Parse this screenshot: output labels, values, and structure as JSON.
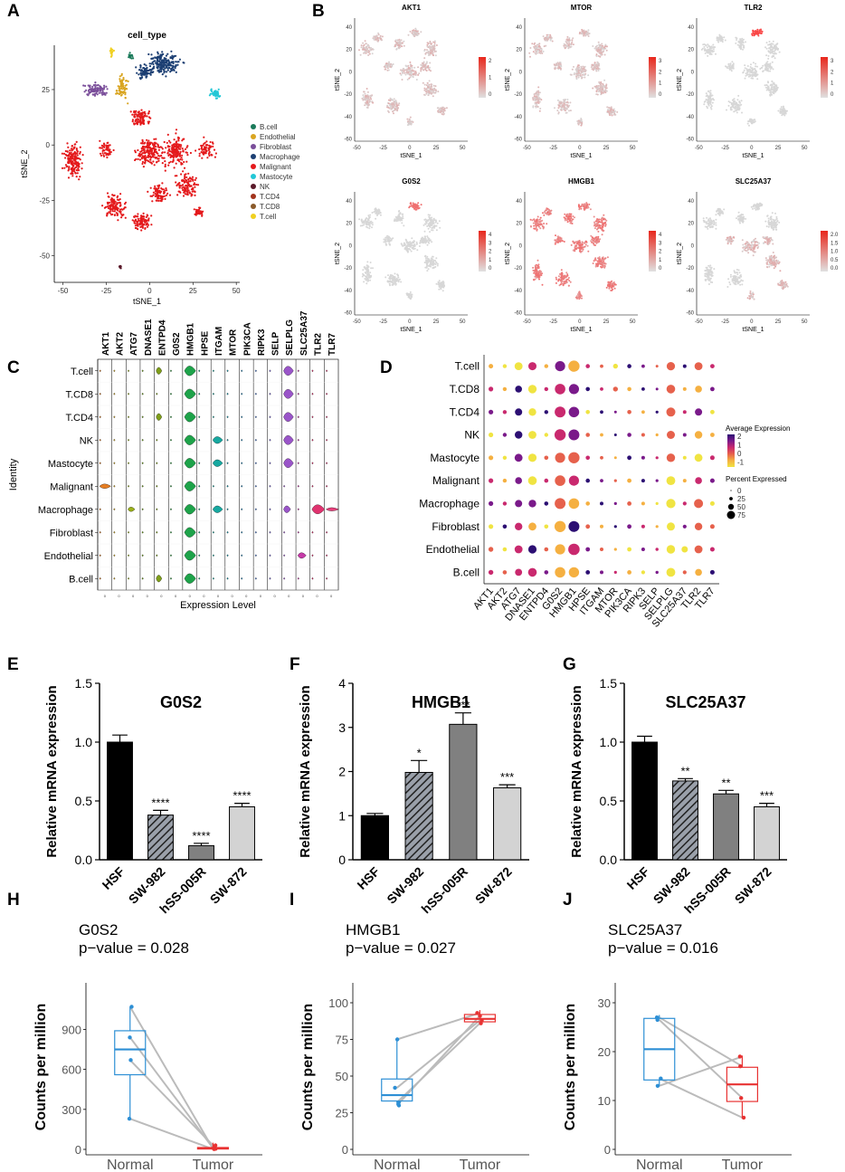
{
  "panel_labels": [
    "A",
    "B",
    "C",
    "D",
    "E",
    "F",
    "G",
    "H",
    "I",
    "J"
  ],
  "tsne": {
    "title": "cell_type",
    "xlabel": "tSNE_1",
    "ylabel": "tSNE_2",
    "xticks": [
      "-50",
      "-25",
      "0",
      "25",
      "50"
    ],
    "yticks": [
      "25",
      "0",
      "-25",
      "-50"
    ],
    "legend": [
      {
        "name": "B.cell",
        "color": "#1b7a5a"
      },
      {
        "name": "Endothelial",
        "color": "#d9a521"
      },
      {
        "name": "Fibroblast",
        "color": "#7a4e9a"
      },
      {
        "name": "Macrophage",
        "color": "#1c3f73"
      },
      {
        "name": "Malignant",
        "color": "#e41a1c"
      },
      {
        "name": "Mastocyte",
        "color": "#22c7d6"
      },
      {
        "name": "NK",
        "color": "#5a1a2a"
      },
      {
        "name": "T.CD4",
        "color": "#a2331c"
      },
      {
        "name": "T.CD8",
        "color": "#8a5a2a"
      },
      {
        "name": "T.cell",
        "color": "#f0d020"
      }
    ]
  },
  "feature_plots": {
    "xlabel": "tSNE_1",
    "ylabel": "tSNE_2",
    "xticks": [
      "-50",
      "-25",
      "0",
      "25",
      "50"
    ],
    "yticks": [
      "40",
      "20",
      "0",
      "-20",
      "-40",
      "-60"
    ],
    "genes": [
      {
        "name": "AKT1",
        "legend": [
          "2",
          "1",
          "0"
        ],
        "max": 2.5
      },
      {
        "name": "MTOR",
        "legend": [
          "3",
          "2",
          "1",
          "0"
        ],
        "max": 3
      },
      {
        "name": "TLR2",
        "legend": [
          "3",
          "2",
          "1",
          "0"
        ],
        "max": 3
      },
      {
        "name": "G0S2",
        "legend": [
          "4",
          "3",
          "2",
          "1",
          "0"
        ],
        "max": 4
      },
      {
        "name": "HMGB1",
        "legend": [
          "4",
          "3",
          "2",
          "1",
          "0"
        ],
        "max": 4
      },
      {
        "name": "SLC25A37",
        "legend": [
          "2.0",
          "1.5",
          "1.0",
          "0.5",
          "0.0"
        ],
        "max": 2
      }
    ]
  },
  "violin": {
    "ylabel": "Identity",
    "xlabel": "Expression Level",
    "genes": [
      "AKT1",
      "AKT2",
      "ATG7",
      "DNASE1",
      "ENTPD4",
      "G0S2",
      "HMGB1",
      "HPSE",
      "ITGAM",
      "MTOR",
      "PIK3CA",
      "RIPK3",
      "SELP",
      "SELPLG",
      "SLC25A37",
      "TLR2",
      "TLR7"
    ],
    "cells": [
      "T.cell",
      "T.CD8",
      "T.CD4",
      "NK",
      "Mastocyte",
      "Malignant",
      "Macrophage",
      "Fibroblast",
      "Endothelial",
      "B.cell"
    ]
  },
  "dotplot": {
    "genes": [
      "AKT1",
      "AKT2",
      "ATG7",
      "DNASE1",
      "ENTPD4",
      "G0S2",
      "HMGB1",
      "HPSE",
      "ITGAM",
      "MTOR",
      "PIK3CA",
      "RIPK3",
      "SELP",
      "SELPLG",
      "SLC25A37",
      "TLR2",
      "TLR7"
    ],
    "cells": [
      "T.cell",
      "T.CD8",
      "T.CD4",
      "NK",
      "Mastocyte",
      "Malignant",
      "Macrophage",
      "Fibroblast",
      "Endothelial",
      "B.cell"
    ],
    "legend_avg_title": "Average Expression",
    "legend_avg_ticks": [
      "2",
      "1",
      "0",
      "-1"
    ],
    "legend_pct_title": "Percent Expressed",
    "legend_pct_ticks": [
      "0",
      "25",
      "50",
      "75"
    ]
  },
  "chart_data": [
    {
      "type": "bar",
      "title": "G0S2",
      "ylabel": "Relative mRNA expression",
      "ylim": [
        0,
        1.5
      ],
      "yticks": [
        "0.0",
        "0.5",
        "1.0",
        "1.5"
      ],
      "categories": [
        "HSF",
        "SW-982",
        "hSS-005R",
        "SW-872"
      ],
      "values": [
        1.0,
        0.38,
        0.12,
        0.45
      ],
      "errors": [
        0.06,
        0.04,
        0.02,
        0.03
      ],
      "significance": [
        "",
        "****",
        "****",
        "****"
      ]
    },
    {
      "type": "bar",
      "title": "HMGB1",
      "ylabel": "Relative mRNA expression",
      "ylim": [
        0,
        4
      ],
      "yticks": [
        "0",
        "1",
        "2",
        "3",
        "4"
      ],
      "categories": [
        "HSF",
        "SW-982",
        "hSS-005R",
        "SW-872"
      ],
      "values": [
        1.0,
        1.98,
        3.07,
        1.63
      ],
      "errors": [
        0.05,
        0.27,
        0.26,
        0.07
      ],
      "significance": [
        "",
        "*",
        "***",
        "***"
      ]
    },
    {
      "type": "bar",
      "title": "SLC25A37",
      "ylabel": "Relative mRNA expression",
      "ylim": [
        0,
        1.5
      ],
      "yticks": [
        "0.0",
        "0.5",
        "1.0",
        "1.5"
      ],
      "categories": [
        "HSF",
        "SW-982",
        "hSS-005R",
        "SW-872"
      ],
      "values": [
        1.0,
        0.67,
        0.56,
        0.45
      ],
      "errors": [
        0.05,
        0.02,
        0.03,
        0.03
      ],
      "significance": [
        "",
        "**",
        "**",
        "***"
      ]
    },
    {
      "type": "box",
      "title": "G0S2",
      "subtitle": "p−value = 0.028",
      "ylabel": "Counts per million",
      "ylim": [
        0,
        1100
      ],
      "yticks": [
        "0",
        "300",
        "600",
        "900"
      ],
      "categories": [
        "Normal",
        "Tumor"
      ],
      "normal": [
        1070,
        670,
        230,
        840
      ],
      "tumor": [
        5,
        30,
        2,
        10
      ],
      "normal_box": [
        560,
        750,
        890,
        230,
        1070
      ],
      "tumor_box": [
        3,
        8,
        14,
        0,
        50
      ]
    },
    {
      "type": "box",
      "title": "HMGB1",
      "subtitle": "p−value = 0.027",
      "ylabel": "Counts per million",
      "ylim": [
        0,
        100
      ],
      "yticks": [
        "0",
        "25",
        "50",
        "75",
        "100"
      ],
      "categories": [
        "Normal",
        "Tumor"
      ],
      "normal": [
        75,
        42,
        32,
        30
      ],
      "tumor": [
        93,
        88,
        86,
        91
      ],
      "normal_box": [
        33,
        37,
        48,
        30,
        75
      ],
      "tumor_box": [
        87,
        89,
        92,
        85,
        95
      ]
    },
    {
      "type": "box",
      "title": "SLC25A37",
      "subtitle": "p−value = 0.016",
      "ylabel": "Counts per million",
      "ylim": [
        0,
        30
      ],
      "yticks": [
        "0",
        "10",
        "20",
        "30"
      ],
      "categories": [
        "Normal",
        "Tumor"
      ],
      "normal": [
        27,
        26.5,
        14.5,
        13
      ],
      "tumor": [
        17,
        10.5,
        6.5,
        19
      ],
      "normal_box": [
        14.2,
        20.5,
        26.8,
        13,
        27.5
      ],
      "tumor_box": [
        9.8,
        13.3,
        16.8,
        6.3,
        19.2
      ]
    }
  ]
}
